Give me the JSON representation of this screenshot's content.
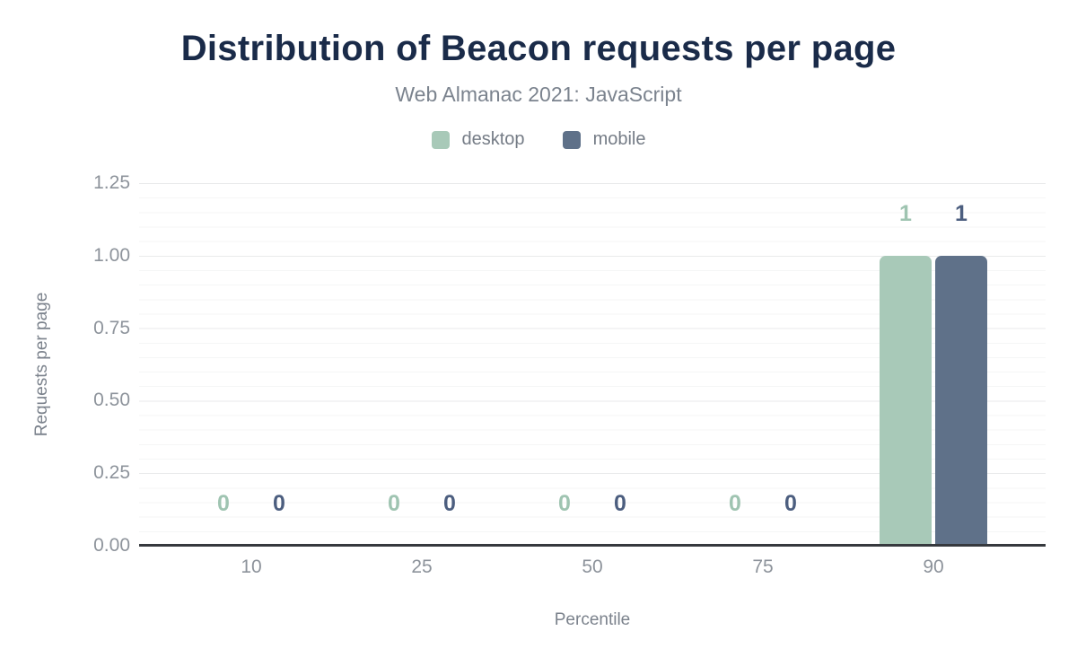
{
  "chart_data": {
    "type": "bar",
    "title": "Distribution of Beacon requests per page",
    "subtitle": "Web Almanac 2021: JavaScript",
    "categories": [
      "10",
      "25",
      "50",
      "75",
      "90"
    ],
    "series": [
      {
        "name": "desktop",
        "color": "#a8c9b8",
        "label_color": "#9fc4b1",
        "values": [
          0,
          0,
          0,
          0,
          1
        ]
      },
      {
        "name": "mobile",
        "color": "#5f7189",
        "label_color": "#4c5e7f",
        "values": [
          0,
          0,
          0,
          0,
          1
        ]
      }
    ],
    "xlabel": "Percentile",
    "ylabel": "Requests per page",
    "ylim": [
      0,
      1.25
    ],
    "ytick_step": 0.25,
    "minor_tick_step": 0.05,
    "ytick_labels": [
      "0.00",
      "0.25",
      "0.50",
      "0.75",
      "1.00",
      "1.25"
    ],
    "grid": true,
    "legend_position": "top",
    "value_labels": true
  },
  "colors": {
    "title": "#1a2b49",
    "subtitle_text": "#7b838e",
    "tick_text": "#8d939b",
    "axis_line": "#36393e",
    "major_grid": "#e9eaeb",
    "minor_grid": "#f5f6f6",
    "background": "#ffffff"
  }
}
